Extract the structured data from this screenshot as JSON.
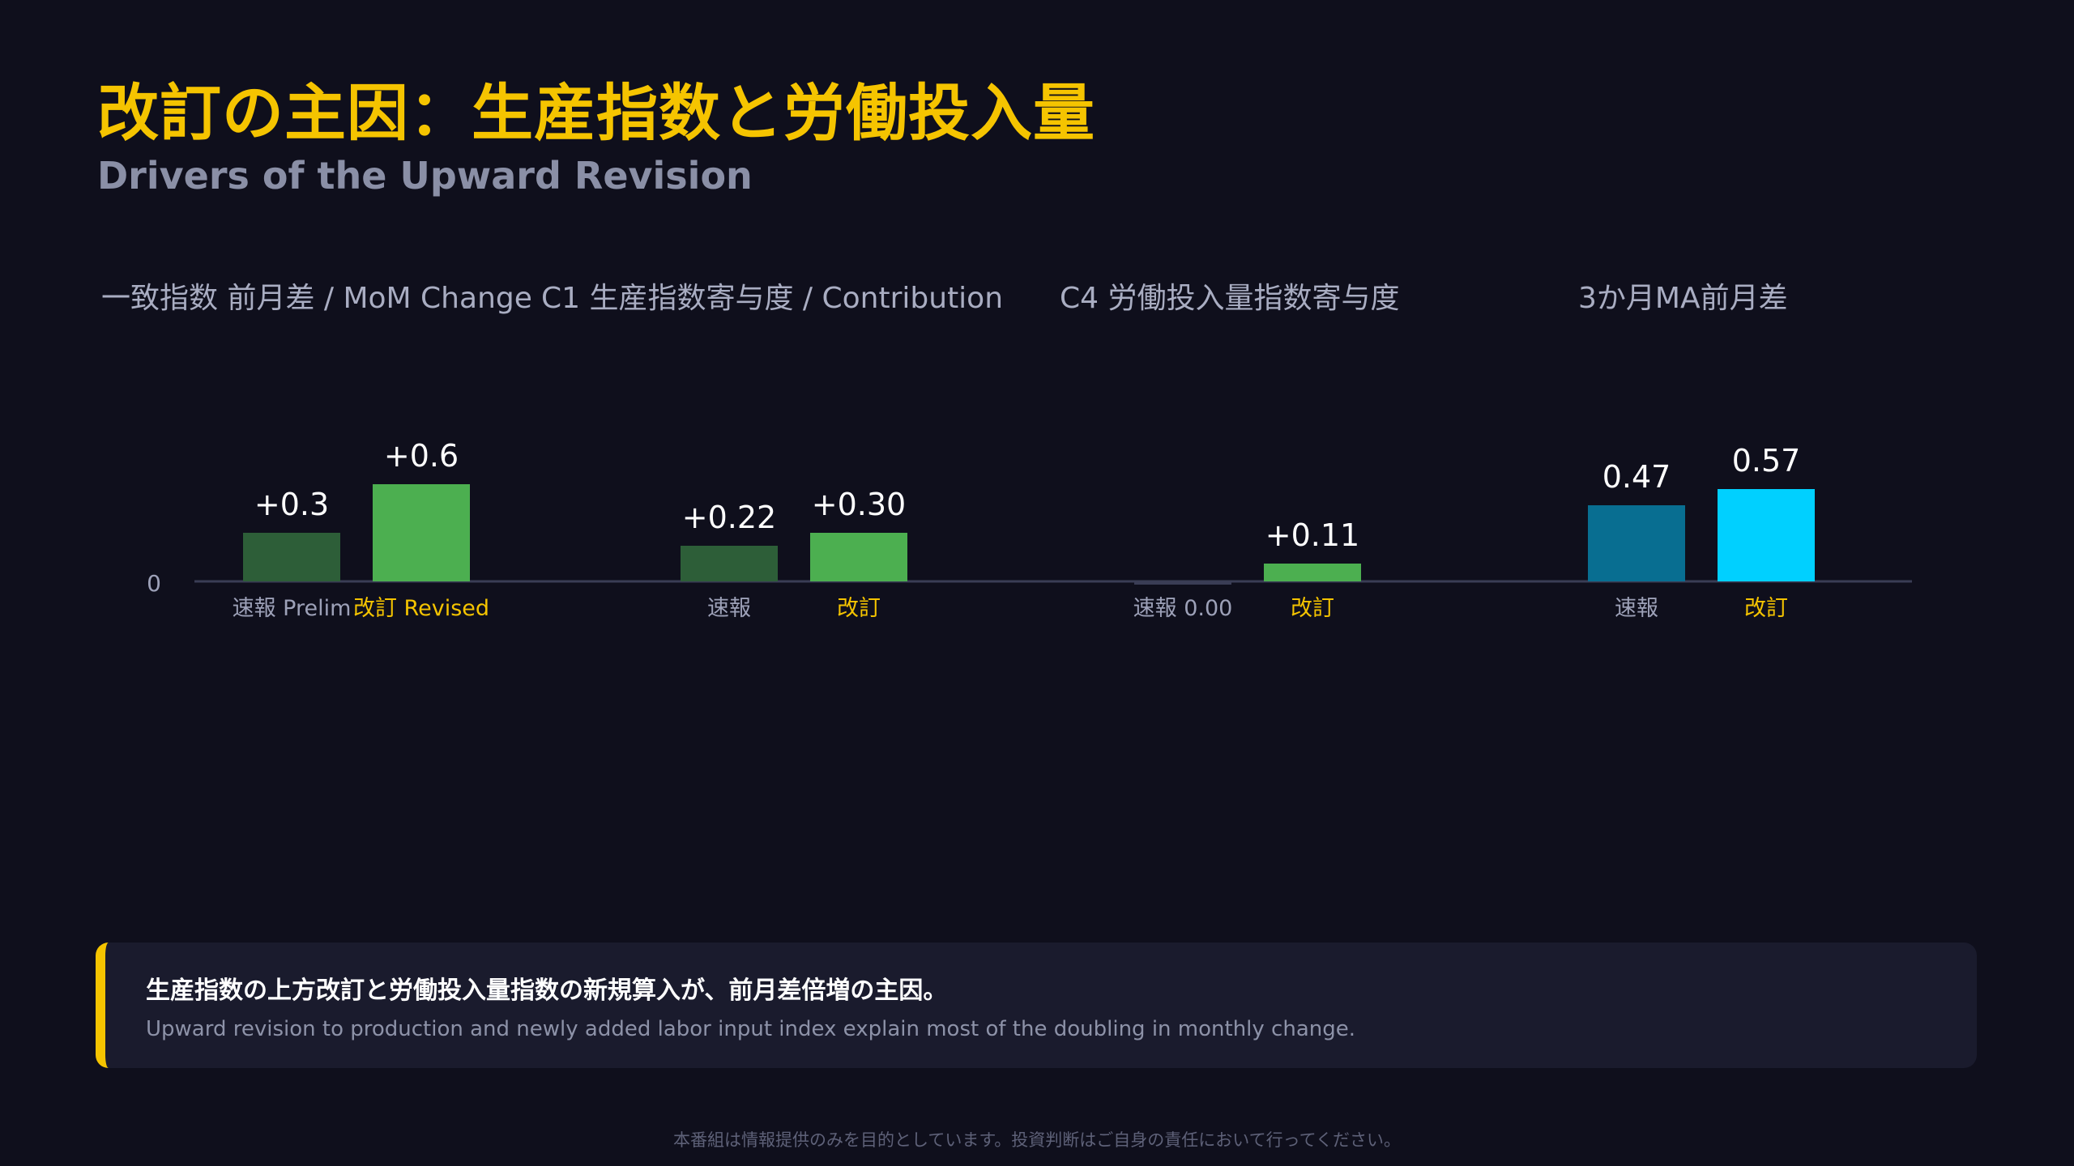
{
  "header": {
    "title": "改訂の主因：生産指数と労働投入量",
    "subtitle": "Drivers of the Upward Revision"
  },
  "colors": {
    "bg": "#0f0f1c",
    "accent": "#f5c400",
    "green_dark": "#2d5e38",
    "green_bright": "#4caf50",
    "blue_dark": "#086e91",
    "blue_bright": "#00d0ff",
    "axis": "#3a3d55",
    "tick_label": "#9da1b8",
    "value_label": "#ffffff"
  },
  "chart_data": {
    "type": "bar",
    "zero_label": "0",
    "groups": [
      {
        "title": "一致指数 前月差 / MoM Change",
        "bars": [
          {
            "label": "速報 Prelim",
            "value": 0.3,
            "value_label": "+0.3",
            "color": "#2d5e38",
            "label_highlight": false
          },
          {
            "label": "改訂 Revised",
            "value": 0.6,
            "value_label": "+0.6",
            "color": "#4caf50",
            "label_highlight": true
          }
        ]
      },
      {
        "title": "C1 生産指数寄与度 / Contribution",
        "bars": [
          {
            "label": "速報",
            "value": 0.22,
            "value_label": "+0.22",
            "color": "#2d5e38",
            "label_highlight": false
          },
          {
            "label": "改訂",
            "value": 0.3,
            "value_label": "+0.30",
            "color": "#4caf50",
            "label_highlight": true
          }
        ]
      },
      {
        "title": "C4 労働投入量指数寄与度",
        "bars": [
          {
            "label": "速報 0.00",
            "value": 0.0,
            "value_label": "",
            "color": "#3a3d55",
            "label_highlight": false
          },
          {
            "label": "改訂",
            "value": 0.11,
            "value_label": "+0.11",
            "color": "#4caf50",
            "label_highlight": true
          }
        ]
      },
      {
        "title": "3か月MA前月差",
        "bars": [
          {
            "label": "速報",
            "value": 0.47,
            "value_label": "0.47",
            "color": "#086e91",
            "label_highlight": false
          },
          {
            "label": "改訂",
            "value": 0.57,
            "value_label": "0.57",
            "color": "#00d0ff",
            "label_highlight": true
          }
        ]
      }
    ]
  },
  "note": {
    "main": "生産指数の上方改訂と労働投入量指数の新規算入が、前月差倍増の主因。",
    "sub": "Upward revision to production and newly added labor input index explain most of the doubling in monthly change."
  },
  "footer": {
    "disclaimer": "本番組は情報提供のみを目的としています。投資判断はご自身の責任において行ってください。"
  }
}
